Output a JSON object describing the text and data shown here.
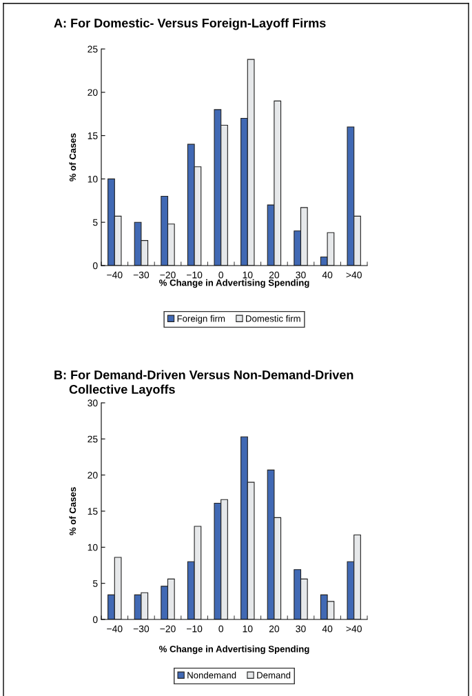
{
  "chart_data": [
    {
      "type": "bar",
      "title": "A: For Domestic- Versus Foreign-Layoff Firms",
      "xlabel": "% Change in Advertising Spending",
      "ylabel": "% of Cases",
      "categories": [
        "−40",
        "−30",
        "−20",
        "−10",
        "0",
        "10",
        "20",
        "30",
        "40",
        ">40"
      ],
      "series": [
        {
          "name": "Foreign firm",
          "color": "#4169b4",
          "values": [
            10,
            5,
            8,
            14,
            18,
            17,
            7,
            4,
            1,
            16
          ]
        },
        {
          "name": "Domestic firm",
          "color": "#e6e8ea",
          "values": [
            5.7,
            2.9,
            4.8,
            11.4,
            16.2,
            23.8,
            19.0,
            6.7,
            3.8,
            5.7
          ]
        }
      ],
      "ylim": [
        0,
        25
      ],
      "yticks": [
        0,
        5,
        10,
        15,
        20,
        25
      ],
      "grid": false,
      "legend": "bottom"
    },
    {
      "type": "bar",
      "title": "B: For Demand-Driven Versus Non-Demand-Driven\nCollective Layoffs",
      "xlabel": "% Change in Advertising Spending",
      "ylabel": "% of Cases",
      "categories": [
        "−40",
        "−30",
        "−20",
        "−10",
        "0",
        "10",
        "20",
        "30",
        "40",
        ">40"
      ],
      "series": [
        {
          "name": "Nondemand",
          "color": "#4169b4",
          "values": [
            3.4,
            3.4,
            4.6,
            8.0,
            16.1,
            25.3,
            20.7,
            6.9,
            3.4,
            8.0
          ]
        },
        {
          "name": "Demand",
          "color": "#e6e8ea",
          "values": [
            8.6,
            3.7,
            5.6,
            12.9,
            16.6,
            19.0,
            14.1,
            5.6,
            2.5,
            11.7
          ]
        }
      ],
      "ylim": [
        0,
        30
      ],
      "yticks": [
        0,
        5,
        10,
        15,
        20,
        25,
        30
      ],
      "grid": false,
      "legend": "bottom"
    }
  ]
}
